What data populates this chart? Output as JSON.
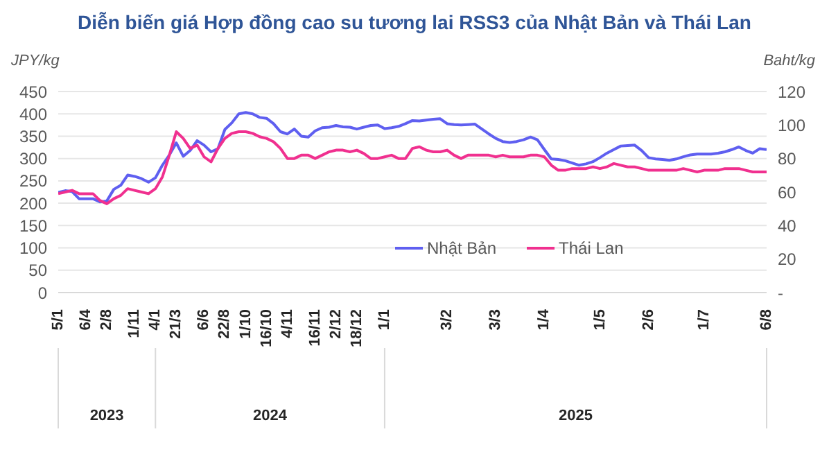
{
  "chart_data": {
    "type": "line",
    "title": "Diễn biến giá Hợp đồng cao su tương lai RSS3 của Nhật Bản và Thái Lan",
    "ylabel": "JPY/kg",
    "y2label": "Baht/kg",
    "categories": [
      "5/1",
      null,
      null,
      null,
      "6/4",
      null,
      null,
      "2/8",
      null,
      null,
      null,
      "1/11",
      null,
      null,
      "4/1",
      null,
      null,
      "21/3",
      null,
      null,
      null,
      "6/6",
      null,
      null,
      "22/8",
      null,
      null,
      "1/10",
      null,
      null,
      "16/10",
      null,
      null,
      "4/11",
      null,
      null,
      null,
      "16/11",
      null,
      null,
      "2/12",
      null,
      null,
      "18/12",
      null,
      null,
      null,
      "1/1",
      null,
      null,
      null,
      null,
      null,
      null,
      null,
      null,
      "3/2",
      null,
      null,
      null,
      null,
      null,
      null,
      "3/3",
      null,
      null,
      null,
      null,
      null,
      null,
      "1/4",
      null,
      null,
      null,
      null,
      null,
      null,
      null,
      "1/5",
      null,
      null,
      null,
      null,
      null,
      null,
      "2/6",
      null,
      null,
      null,
      null,
      null,
      null,
      null,
      "1/7",
      null,
      null,
      null,
      null,
      null,
      null,
      null,
      null,
      "6/8"
    ],
    "series": [
      {
        "name": "Nhật Bản",
        "color": "#5f5ff0",
        "axis": "y",
        "values": [
          224,
          228,
          226,
          210,
          210,
          210,
          203,
          205,
          231,
          240,
          263,
          260,
          255,
          247,
          257,
          285,
          308,
          335,
          305,
          318,
          340,
          330,
          315,
          322,
          365,
          380,
          400,
          403,
          400,
          392,
          390,
          378,
          360,
          355,
          366,
          350,
          348,
          362,
          369,
          370,
          374,
          371,
          370,
          366,
          370,
          374,
          375,
          367,
          369,
          372,
          378,
          385,
          384,
          386,
          388,
          389,
          378,
          376,
          375,
          376,
          377,
          366,
          355,
          345,
          338,
          336,
          338,
          342,
          348,
          342,
          320,
          299,
          298,
          295,
          290,
          285,
          288,
          293,
          302,
          312,
          320,
          328,
          329,
          330,
          318,
          302,
          299,
          298,
          296,
          299,
          304,
          308,
          310,
          310,
          310,
          312,
          315,
          320,
          326,
          318,
          312,
          322,
          320
        ]
      },
      {
        "name": "Thái Lan",
        "color": "#f0308f",
        "axis": "y2",
        "values": [
          59,
          60,
          61,
          59,
          59,
          59,
          55,
          53,
          56,
          58,
          62,
          61,
          60,
          59,
          62,
          69,
          82,
          96,
          92,
          86,
          88,
          81,
          78,
          86,
          92,
          95,
          96,
          96,
          95,
          93,
          92,
          90,
          86,
          80,
          80,
          82,
          82,
          80,
          82,
          84,
          85,
          85,
          84,
          85,
          83,
          80,
          80,
          81,
          82,
          80,
          80,
          86,
          87,
          85,
          84,
          84,
          85,
          82,
          80,
          82,
          82,
          82,
          82,
          81,
          82,
          81,
          81,
          81,
          82,
          82,
          81,
          76,
          73,
          73,
          74,
          74,
          74,
          75,
          74,
          75,
          77,
          76,
          75,
          75,
          74,
          73,
          73,
          73,
          73,
          73,
          74,
          73,
          72,
          73,
          73,
          73,
          74,
          74,
          74,
          73,
          72,
          72,
          72
        ]
      }
    ],
    "ylim": [
      0,
      450
    ],
    "yticks": [
      0,
      50,
      100,
      150,
      200,
      250,
      300,
      350,
      400,
      450
    ],
    "y2lim": [
      0,
      120
    ],
    "y2ticks": [
      {
        "value": 0,
        "label": "-"
      },
      20,
      40,
      60,
      80,
      100,
      120
    ],
    "annotations": [
      "2023",
      "2024",
      "2025"
    ],
    "grid": "y",
    "legend": "center",
    "marker": "none",
    "line_style": "solid"
  }
}
